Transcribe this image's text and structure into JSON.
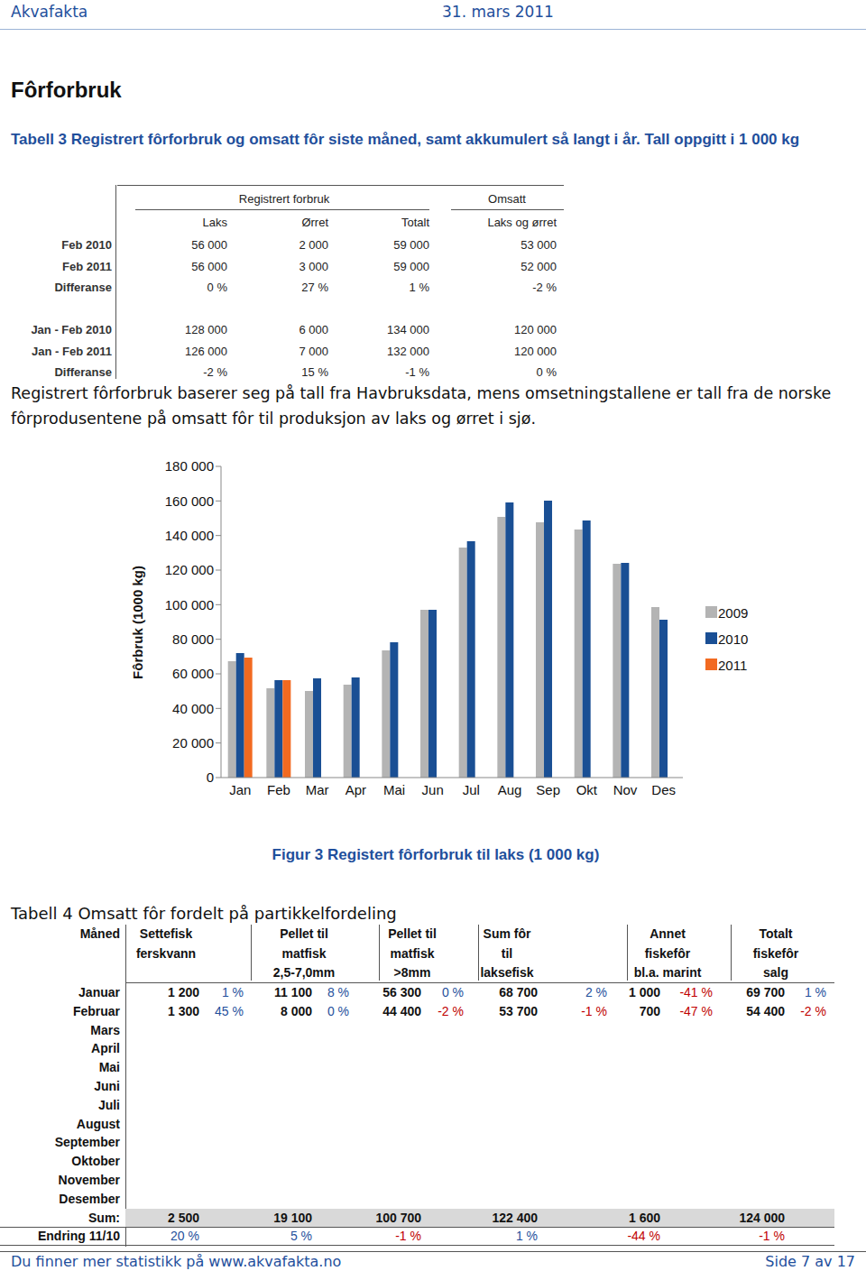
{
  "header": {
    "left": "Akvafakta",
    "date": "31. mars 2011"
  },
  "section_title": "Fôrforbruk",
  "table3": {
    "caption": "Tabell 3 Registrert fôrforbruk og omsatt fôr siste måned, samt akkumulert så langt i år. Tall oppgitt i 1 000 kg",
    "groups": [
      "Registrert forbruk",
      "Omsatt"
    ],
    "columns": [
      "Laks",
      "Ørret",
      "Totalt",
      "Laks og ørret"
    ],
    "blocks": [
      [
        {
          "label": "Feb 2010",
          "cells": [
            "56 000",
            "2 000",
            "59 000",
            "53 000"
          ]
        },
        {
          "label": "Feb 2011",
          "cells": [
            "56 000",
            "3 000",
            "59 000",
            "52 000"
          ]
        },
        {
          "label": "Differanse",
          "cells": [
            "0 %",
            "27 %",
            "1 %",
            "-2 %"
          ]
        }
      ],
      [
        {
          "label": "Jan - Feb  2010",
          "cells": [
            "128 000",
            "6 000",
            "134 000",
            "120 000"
          ]
        },
        {
          "label": "Jan - Feb  2011",
          "cells": [
            "126 000",
            "7 000",
            "132 000",
            "120 000"
          ]
        },
        {
          "label": "Differanse",
          "cells": [
            "-2 %",
            "15 %",
            "-1 %",
            "0 %"
          ]
        }
      ]
    ]
  },
  "note": "Registrert fôrforbruk baserer seg på tall fra Havbruksdata, mens omsetningstallene er tall fra de norske fôrprodusentene på omsatt fôr til produksjon av laks og ørret i sjø.",
  "chart_data": {
    "type": "bar",
    "title": "Figur 3 Registert fôrforbruk til laks (1 000 kg)",
    "y_label": "Fôrbruk (1000 kg)",
    "categories": [
      "Jan",
      "Feb",
      "Mar",
      "Apr",
      "Mai",
      "Jun",
      "Jul",
      "Aug",
      "Sep",
      "Okt",
      "Nov",
      "Des"
    ],
    "series": [
      {
        "name": "2009",
        "color": "#b4b4b4",
        "values": [
          67300,
          51700,
          50100,
          53700,
          73600,
          97000,
          133000,
          150800,
          147700,
          143500,
          123700,
          98600
        ]
      },
      {
        "name": "2010",
        "color": "#1a4f94",
        "values": [
          72000,
          56300,
          57400,
          57900,
          78300,
          97000,
          136700,
          159100,
          160200,
          148700,
          124200,
          91300
        ]
      },
      {
        "name": "2011",
        "color": "#f26a21",
        "values": [
          69400,
          56300,
          null,
          null,
          null,
          null,
          null,
          null,
          null,
          null,
          null,
          null
        ]
      }
    ],
    "ylim": [
      0,
      180000
    ],
    "yticks": [
      0,
      {
        "value": 20000,
        "label": "20 000"
      },
      {
        "value": 40000,
        "label": "40 000"
      },
      {
        "value": 60000,
        "label": "60 000"
      },
      {
        "value": 80000,
        "label": "80 000"
      },
      {
        "value": 100000,
        "label": "100 000"
      },
      {
        "value": 120000,
        "label": "120 000"
      },
      {
        "value": 140000,
        "label": "140 000"
      },
      {
        "value": 160000,
        "label": "160 000"
      },
      {
        "value": 180000,
        "label": "180 000"
      }
    ],
    "grid": false,
    "legend": "right"
  },
  "table4": {
    "caption": "Tabell 4 Omsatt fôr fordelt på partikkelfordeling",
    "first_header": "Måned",
    "headers": [
      [
        "Settefisk",
        "ferskvann"
      ],
      [
        "Pellet til",
        "matfisk",
        "2,5-7,0mm"
      ],
      [
        "Pellet til",
        "matfisk",
        ">8mm"
      ],
      [
        "Sum fôr",
        "til",
        "laksefisk"
      ],
      [
        "Annet",
        "fiskefôr",
        "bl.a. marint"
      ],
      [
        "Totalt",
        "fiskefôr",
        "salg"
      ]
    ],
    "rows": [
      {
        "label": "Januar",
        "cells": [
          [
            "1 200",
            "1 %"
          ],
          [
            "11 100",
            "8 %"
          ],
          [
            "56 300",
            "0 %"
          ],
          [
            "68 700",
            "2 %"
          ],
          [
            "1 000",
            "-41 %"
          ],
          [
            "69 700",
            "1 %"
          ]
        ]
      },
      {
        "label": "Februar",
        "cells": [
          [
            "1 300",
            "45 %"
          ],
          [
            "8 000",
            "0 %"
          ],
          [
            "44 400",
            "-2 %"
          ],
          [
            "53 700",
            "-1 %"
          ],
          [
            "700",
            "-47 %"
          ],
          [
            "54 400",
            "-2 %"
          ]
        ]
      },
      {
        "label": "Mars"
      },
      {
        "label": "April"
      },
      {
        "label": "Mai"
      },
      {
        "label": "Juni"
      },
      {
        "label": "Juli"
      },
      {
        "label": "August"
      },
      {
        "label": "September"
      },
      {
        "label": "Oktober"
      },
      {
        "label": "November"
      },
      {
        "label": "Desember"
      },
      {
        "label": "Sum:",
        "cells": [
          [
            "2 500"
          ],
          [
            "19 100"
          ],
          [
            "100 700"
          ],
          [
            "122 400"
          ],
          [
            "1 600"
          ],
          [
            "124 000"
          ]
        ]
      },
      {
        "label": "Endring 11/10",
        "cells": [
          [
            "20 %"
          ],
          [
            "5 %"
          ],
          [
            "-1 %"
          ],
          [
            "1 %"
          ],
          [
            "-44 %"
          ],
          [
            "-1 %"
          ]
        ]
      }
    ]
  },
  "footer": {
    "left": "Du finner mer statistikk på www.akvafakta.no",
    "right": "Side 7 av 17"
  }
}
